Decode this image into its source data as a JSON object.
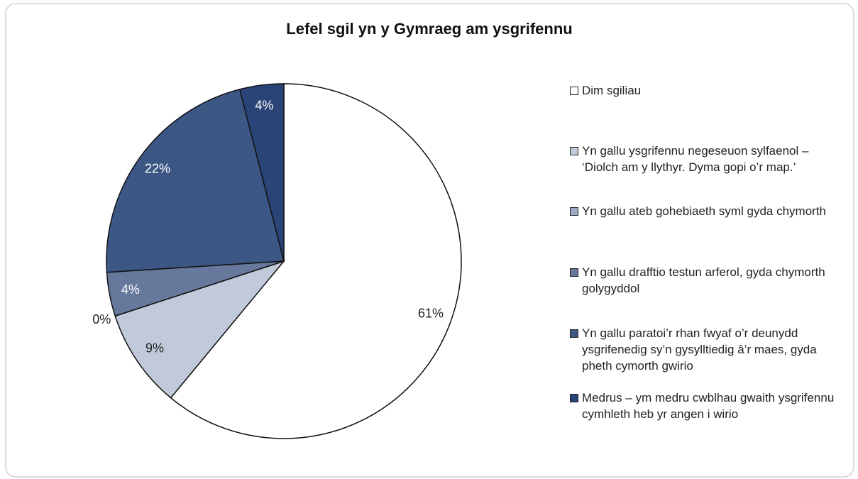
{
  "chart_data": {
    "type": "pie",
    "title": "Lefel sgil yn y Gymraeg am ysgrifennu",
    "series": [
      {
        "name": "Dim sgiliau",
        "color": "#ffffff",
        "values": [
          61
        ],
        "value_labels": [
          "61%"
        ]
      },
      {
        "name": "Yn gallu ysgrifennu negeseuon sylfaenol – ‘Diolch am y llythyr. Dyma gopi o’r map.’",
        "color": "#c1cada",
        "values": [
          9
        ],
        "value_labels": [
          "9%"
        ]
      },
      {
        "name": "Yn gallu ateb gohebiaeth syml gyda chymorth",
        "color": "#9eabc4",
        "values": [
          0
        ],
        "value_labels": [
          "0%"
        ]
      },
      {
        "name": "Yn gallu drafftio testun arferol, gyda chymorth golygyddol",
        "color": "#66799c",
        "values": [
          4
        ],
        "value_labels": [
          "4%"
        ]
      },
      {
        "name": "Yn gallu paratoi’r rhan fwyaf o’r deunydd ysgrifenedig sy’n gysylltiedig â’r maes, gyda pheth cymorth gwirio",
        "color": "#3d5785",
        "values": [
          22
        ],
        "value_labels": [
          "22%"
        ]
      },
      {
        "name": "Medrus – ym medru cwblhau gwaith ysgrifennu cymhleth heb yr angen i wirio",
        "color": "#2a4477",
        "values": [
          4
        ],
        "value_labels": [
          "4%"
        ]
      }
    ],
    "legend": "right"
  }
}
